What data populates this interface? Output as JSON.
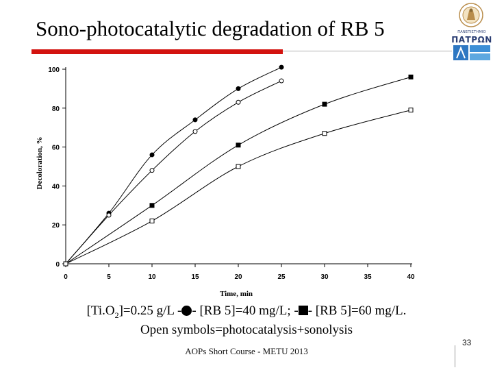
{
  "slide": {
    "title": "Sono-photocatalytic degradation of RB 5",
    "caption": {
      "line1_prefix": "[Ti.O",
      "line1_sub": "2",
      "line1_part2": "]=0.25 g/L -",
      "line1_part3": "- [RB 5]=40 mg/L; -",
      "line1_part4": "- [RB 5]=60 mg/L.",
      "line2": "Open symbols=photocatalysis+sonolysis"
    },
    "footer": "AOPs Short Course - METU 2013",
    "page_number": "33",
    "logo": {
      "icon": "university-of-patras-logo-icon",
      "text_top": "ΠΑΝΕΠΙΣΤΗΜΙΟ",
      "text_main": "ΠΑΤΡΩΝ"
    }
  },
  "chart_data": {
    "type": "line",
    "xlabel": "Time, min",
    "ylabel": "Decoloration, %",
    "xlim": [
      0,
      40
    ],
    "ylim": [
      0,
      100
    ],
    "xticks": [
      0,
      5,
      10,
      15,
      20,
      25,
      30,
      35,
      40
    ],
    "yticks": [
      0,
      20,
      40,
      60,
      80,
      100
    ],
    "grid": false,
    "legend": "none",
    "series": [
      {
        "marker": "filled-circle",
        "x": [
          0,
          5,
          10,
          15,
          20,
          25
        ],
        "values": [
          0,
          26,
          56,
          74,
          90,
          101
        ]
      },
      {
        "marker": "open-circle",
        "x": [
          0,
          5,
          10,
          15,
          20,
          25
        ],
        "values": [
          0,
          25,
          48,
          68,
          83,
          94
        ]
      },
      {
        "marker": "filled-square",
        "x": [
          0,
          10,
          20,
          30,
          40
        ],
        "values": [
          0,
          30,
          61,
          82,
          96
        ]
      },
      {
        "marker": "open-square",
        "x": [
          0,
          10,
          20,
          30,
          40
        ],
        "values": [
          0,
          22,
          50,
          67,
          79
        ]
      }
    ]
  }
}
